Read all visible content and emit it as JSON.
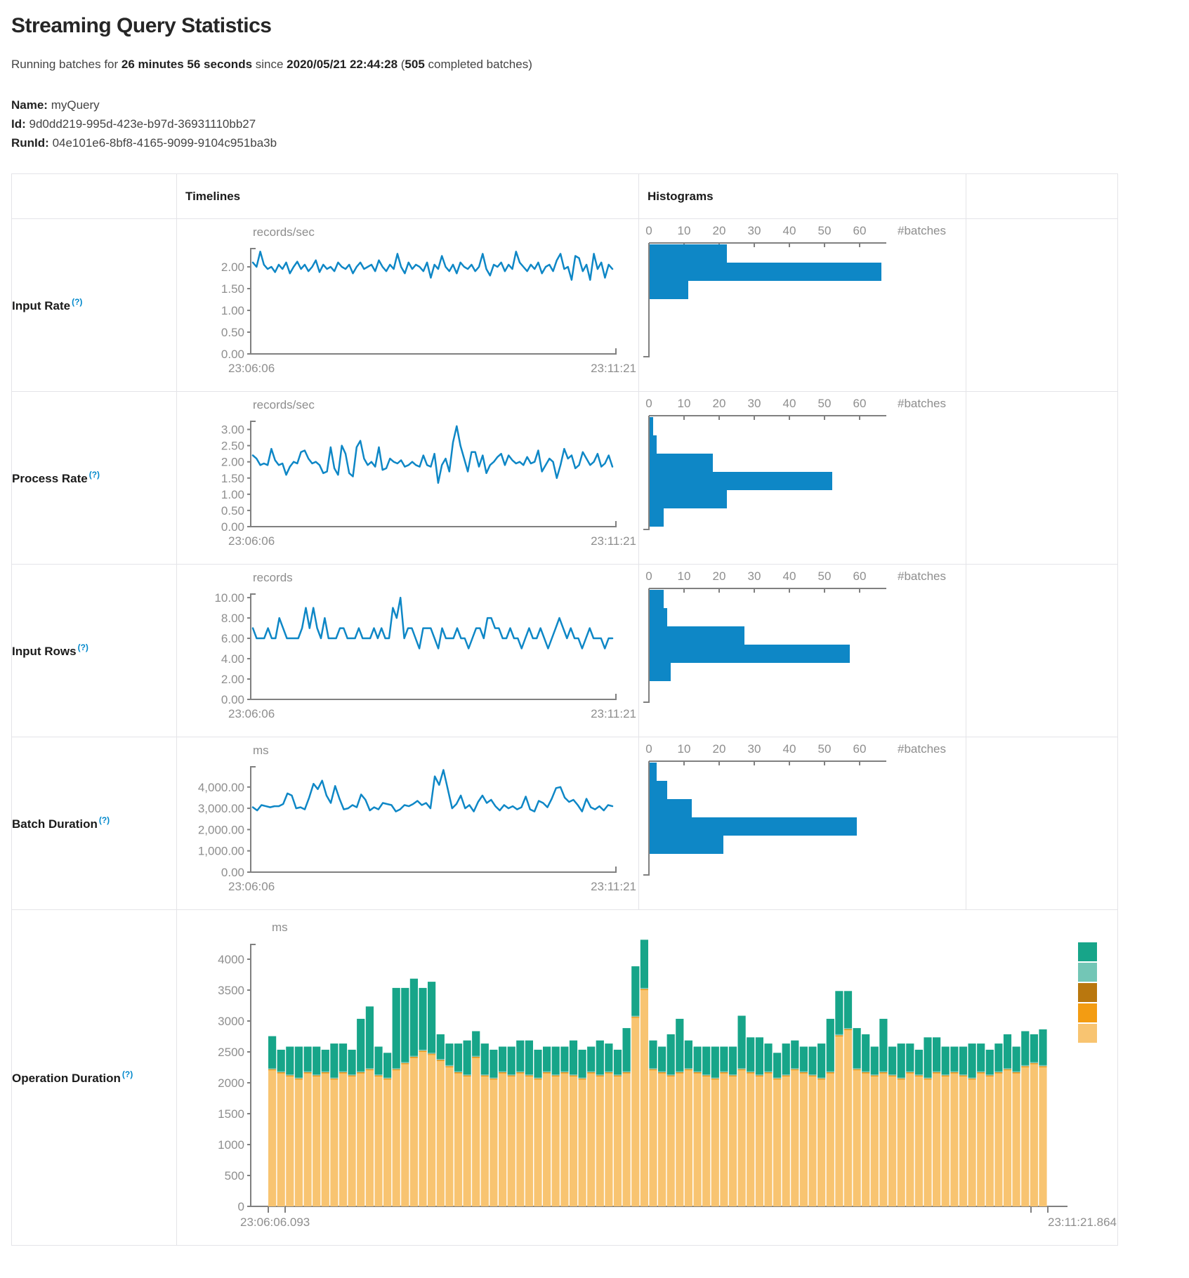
{
  "page": {
    "title": "Streaming Query Statistics",
    "subtitle": {
      "t1": "Running batches for ",
      "b1": "26 minutes 56 seconds",
      "t2": " since ",
      "b2": "2020/05/21 22:44:28",
      "t3": " (",
      "b3": "505",
      "t4": " completed batches)"
    },
    "meta": [
      {
        "label": "Name:",
        "value": "myQuery"
      },
      {
        "label": "Id:",
        "value": "9d0dd219-995d-423e-b97d-36931110bb27"
      },
      {
        "label": "RunId:",
        "value": "04e101e6-8bf8-4165-9099-9104c951ba3b"
      }
    ]
  },
  "table": {
    "headers": {
      "blank": "",
      "timelines": "Timelines",
      "histograms": "Histograms"
    },
    "rows": [
      {
        "label": "Input Rate",
        "help": "(?)"
      },
      {
        "label": "Process Rate",
        "help": "(?)"
      },
      {
        "label": "Input Rows",
        "help": "(?)"
      },
      {
        "label": "Batch Duration",
        "help": "(?)"
      },
      {
        "label": "Operation Duration",
        "help": "(?)"
      }
    ]
  },
  "colors": {
    "line_blue": "#0e87c6",
    "hist_blue": "#0e87c6",
    "axis_grey": "#808080",
    "text_grey": "#8e8e8e",
    "teal": "#17A589",
    "light_teal": "#73C6B6",
    "dark_gold": "#B9770E",
    "orange": "#F39C12",
    "light_orange": "#F8C471"
  },
  "chart_data": [
    {
      "id": "input-rate-timeline",
      "type": "line",
      "title": "Input Rate timeline",
      "unit": "records/sec",
      "ymax": 2.42,
      "yticks": [
        {
          "v": 0,
          "label": "0.00"
        },
        {
          "v": 0.5,
          "label": "0.50"
        },
        {
          "v": 1,
          "label": "1.00"
        },
        {
          "v": 1.5,
          "label": "1.50"
        },
        {
          "v": 2,
          "label": "2.00"
        }
      ],
      "x_start_label": "23:06:06",
      "x_end_label": "23:11:21",
      "values": [
        2.1,
        2.0,
        2.35,
        2.05,
        1.95,
        2.0,
        1.88,
        2.05,
        1.95,
        2.1,
        1.85,
        2.0,
        2.12,
        1.95,
        2.05,
        1.9,
        2.0,
        2.15,
        1.88,
        2.05,
        1.95,
        2.0,
        1.9,
        2.1,
        2.0,
        1.95,
        2.05,
        1.85,
        2.0,
        2.1,
        1.95,
        2.0,
        2.05,
        1.9,
        2.15,
        2.0,
        1.9,
        2.05,
        1.95,
        2.3,
        2.0,
        1.85,
        2.1,
        1.95,
        2.05,
        2.0,
        1.9,
        2.1,
        1.75,
        2.05,
        1.95,
        2.25,
        2.0,
        1.9,
        2.05,
        1.85,
        2.1,
        2.0,
        1.95,
        2.05,
        1.9,
        2.0,
        2.3,
        1.95,
        1.8,
        2.05,
        2.0,
        2.1,
        1.9,
        2.05,
        1.95,
        2.35,
        2.1,
        2.0,
        1.9,
        2.05,
        1.95,
        2.1,
        1.85,
        2.0,
        2.05,
        1.9,
        2.15,
        2.3,
        1.95,
        2.0,
        1.7,
        2.25,
        2.2,
        1.9,
        2.05,
        1.7,
        2.3,
        1.95,
        2.1,
        1.75,
        2.05,
        1.95
      ]
    },
    {
      "id": "input-rate-histogram",
      "type": "histogram",
      "title": "Input Rate histogram",
      "xticks": [
        0,
        10,
        20,
        30,
        40,
        50,
        60
      ],
      "xlabel": "#batches",
      "values": [
        22,
        66,
        11
      ]
    },
    {
      "id": "process-rate-timeline",
      "type": "line",
      "title": "Process Rate timeline",
      "unit": "records/sec",
      "ymax": 3.25,
      "yticks": [
        {
          "v": 0,
          "label": "0.00"
        },
        {
          "v": 0.5,
          "label": "0.50"
        },
        {
          "v": 1,
          "label": "1.00"
        },
        {
          "v": 1.5,
          "label": "1.50"
        },
        {
          "v": 2,
          "label": "2.00"
        },
        {
          "v": 2.5,
          "label": "2.50"
        },
        {
          "v": 3,
          "label": "3.00"
        }
      ],
      "x_start_label": "23:06:06",
      "x_end_label": "23:11:21",
      "values": [
        2.2,
        2.1,
        1.9,
        1.95,
        1.9,
        2.4,
        2.05,
        1.9,
        1.95,
        1.6,
        1.85,
        2.0,
        1.95,
        2.3,
        2.35,
        2.1,
        1.95,
        2.0,
        1.9,
        1.65,
        1.7,
        2.45,
        1.8,
        1.6,
        2.5,
        2.25,
        1.65,
        1.55,
        2.45,
        2.65,
        2.1,
        1.9,
        2.0,
        1.85,
        2.45,
        1.75,
        1.8,
        2.1,
        2.0,
        1.95,
        2.05,
        1.85,
        1.9,
        2.0,
        1.9,
        1.85,
        2.2,
        1.9,
        1.85,
        2.25,
        1.35,
        1.9,
        2.1,
        1.7,
        2.6,
        3.1,
        2.5,
        2.1,
        1.7,
        2.3,
        2.3,
        1.85,
        2.2,
        1.65,
        1.9,
        2.0,
        2.15,
        2.25,
        1.9,
        2.2,
        2.05,
        1.95,
        2.0,
        1.9,
        2.15,
        1.95,
        2.0,
        2.35,
        1.7,
        1.9,
        2.1,
        2.0,
        1.5,
        1.9,
        2.4,
        2.1,
        2.2,
        1.8,
        1.9,
        2.3,
        2.1,
        1.9,
        2.0,
        2.25,
        1.85,
        1.95,
        2.2,
        1.85
      ]
    },
    {
      "id": "process-rate-histogram",
      "type": "histogram",
      "title": "Process Rate histogram",
      "xticks": [
        0,
        10,
        20,
        30,
        40,
        50,
        60
      ],
      "xlabel": "#batches",
      "values": [
        1,
        2,
        18,
        52,
        22,
        4
      ]
    },
    {
      "id": "input-rows-timeline",
      "type": "line",
      "title": "Input Rows timeline",
      "unit": "records",
      "ymax": 10.35,
      "yticks": [
        {
          "v": 0,
          "label": "0.00"
        },
        {
          "v": 2,
          "label": "2.00"
        },
        {
          "v": 4,
          "label": "4.00"
        },
        {
          "v": 6,
          "label": "6.00"
        },
        {
          "v": 8,
          "label": "8.00"
        },
        {
          "v": 10,
          "label": "10.00"
        }
      ],
      "x_start_label": "23:06:06",
      "x_end_label": "23:11:21",
      "values": [
        7,
        6,
        6,
        6,
        7,
        6,
        6,
        8,
        7,
        6,
        6,
        6,
        6,
        7,
        9,
        7,
        9,
        7,
        6,
        8,
        6,
        6,
        6,
        7,
        7,
        6,
        6,
        6,
        7,
        6,
        6,
        6,
        7,
        6,
        7,
        6,
        6,
        9,
        8,
        10,
        6,
        7,
        7,
        6,
        5,
        7,
        7,
        7,
        6,
        5,
        7,
        6,
        6,
        6,
        7,
        6,
        6,
        5,
        6,
        7,
        7,
        6,
        8,
        8,
        7,
        7,
        6,
        6,
        7,
        6,
        6,
        5,
        6,
        7,
        6,
        6,
        7,
        6,
        5,
        6,
        7,
        8,
        7,
        6,
        7,
        6,
        6,
        5,
        6,
        7,
        6,
        6,
        6,
        5,
        6,
        6
      ]
    },
    {
      "id": "input-rows-histogram",
      "type": "histogram",
      "title": "Input Rows histogram",
      "xticks": [
        0,
        10,
        20,
        30,
        40,
        50,
        60
      ],
      "xlabel": "#batches",
      "values": [
        4,
        5,
        27,
        57,
        6
      ]
    },
    {
      "id": "batch-duration-timeline",
      "type": "line",
      "title": "Batch Duration timeline",
      "unit": "ms",
      "ymax": 4950,
      "yticks": [
        {
          "v": 0,
          "label": "0.00"
        },
        {
          "v": 1000,
          "label": "1,000.00"
        },
        {
          "v": 2000,
          "label": "2,000.00"
        },
        {
          "v": 3000,
          "label": "3,000.00"
        },
        {
          "v": 4000,
          "label": "4,000.00"
        }
      ],
      "x_start_label": "23:06:06",
      "x_end_label": "23:11:21",
      "values": [
        3050,
        2900,
        3150,
        3100,
        3050,
        3100,
        3100,
        3200,
        3700,
        3600,
        3000,
        3050,
        2950,
        3500,
        4150,
        3900,
        4300,
        3600,
        3250,
        4050,
        3450,
        2950,
        3000,
        3150,
        3050,
        3650,
        3400,
        2900,
        3050,
        2950,
        3250,
        3200,
        3150,
        2850,
        2950,
        3150,
        3100,
        3200,
        3350,
        3150,
        3250,
        3000,
        4500,
        4100,
        4800,
        3900,
        3000,
        3200,
        3600,
        3000,
        3150,
        2850,
        3300,
        3600,
        3250,
        3400,
        3100,
        2900,
        3150,
        3000,
        3100,
        2950,
        3050,
        3550,
        2950,
        2850,
        3350,
        3250,
        3050,
        3450,
        3950,
        4000,
        3500,
        3300,
        3400,
        3150,
        2850,
        3450,
        3050,
        2950,
        3100,
        2900,
        3150,
        3100
      ]
    },
    {
      "id": "batch-duration-histogram",
      "type": "histogram",
      "title": "Batch Duration histogram",
      "xticks": [
        0,
        10,
        20,
        30,
        40,
        50,
        60
      ],
      "xlabel": "#batches",
      "values": [
        2,
        5,
        12,
        59,
        21
      ]
    },
    {
      "id": "operation-duration-chart",
      "type": "stacked-bar",
      "title": "Operation Duration stacked bars",
      "unit": "ms",
      "yticks": [
        {
          "v": 0,
          "label": "0"
        },
        {
          "v": 500,
          "label": "500"
        },
        {
          "v": 1000,
          "label": "1000"
        },
        {
          "v": 1500,
          "label": "1500"
        },
        {
          "v": 2000,
          "label": "2000"
        },
        {
          "v": 2500,
          "label": "2500"
        },
        {
          "v": 3000,
          "label": "3000"
        },
        {
          "v": 3500,
          "label": "3500"
        },
        {
          "v": 4000,
          "label": "4000"
        }
      ],
      "x_start_label": "23:06:06.093",
      "x_end_label": "23:11:21.864",
      "series": [
        {
          "name": "light-orange",
          "color": "#F8C471",
          "values": [
            2200,
            2150,
            2100,
            2050,
            2150,
            2100,
            2150,
            2050,
            2150,
            2100,
            2150,
            2200,
            2100,
            2050,
            2200,
            2300,
            2400,
            2500,
            2450,
            2350,
            2250,
            2150,
            2100,
            2400,
            2100,
            2050,
            2150,
            2100,
            2150,
            2100,
            2050,
            2150,
            2100,
            2150,
            2100,
            2050,
            2150,
            2100,
            2150,
            2100,
            2150,
            3050,
            3500,
            2200,
            2150,
            2100,
            2150,
            2200,
            2150,
            2100,
            2050,
            2150,
            2100,
            2200,
            2150,
            2100,
            2150,
            2050,
            2100,
            2200,
            2150,
            2100,
            2050,
            2150,
            2750,
            2850,
            2200,
            2150,
            2100,
            2150,
            2100,
            2050,
            2150,
            2100,
            2050,
            2150,
            2100,
            2150,
            2100,
            2050,
            2150,
            2100,
            2150,
            2200,
            2150,
            2250,
            2300,
            2250
          ]
        },
        {
          "name": "orange",
          "color": "#F39C12",
          "constant": 14
        },
        {
          "name": "dark-gold",
          "color": "#B9770E",
          "constant": 6
        },
        {
          "name": "light-teal",
          "color": "#73C6B6",
          "constant": 15
        },
        {
          "name": "teal",
          "color": "#17A589",
          "values": [
            520,
            350,
            450,
            500,
            400,
            450,
            350,
            550,
            450,
            400,
            850,
            1000,
            450,
            400,
            1300,
            1200,
            1250,
            1000,
            1150,
            400,
            350,
            450,
            550,
            400,
            500,
            450,
            400,
            450,
            500,
            550,
            450,
            400,
            450,
            400,
            550,
            450,
            400,
            550,
            450,
            400,
            700,
            800,
            780,
            450,
            400,
            650,
            850,
            450,
            400,
            450,
            500,
            400,
            450,
            850,
            550,
            600,
            450,
            400,
            500,
            450,
            400,
            450,
            550,
            850,
            700,
            600,
            650,
            600,
            450,
            850,
            450,
            550,
            450,
            400,
            650,
            550,
            450,
            400,
            450,
            550,
            450,
            400,
            450,
            550,
            400,
            550,
            450,
            580
          ]
        }
      ],
      "legend": [
        "#17A589",
        "#73C6B6",
        "#B9770E",
        "#F39C12",
        "#F8C471"
      ]
    }
  ]
}
